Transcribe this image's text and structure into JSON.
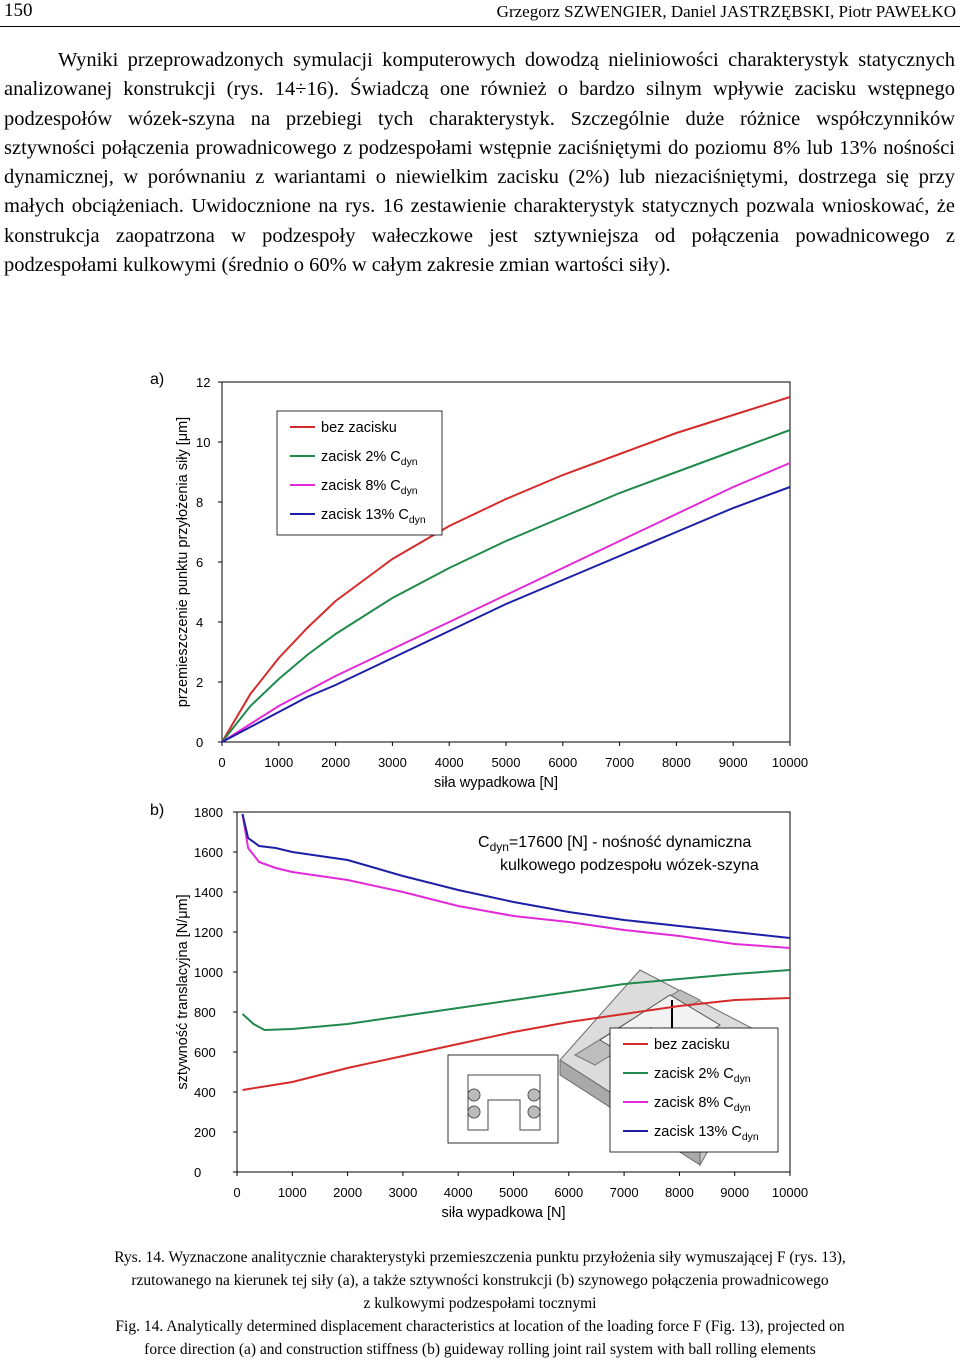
{
  "header": {
    "page_number": "150",
    "authors": "Grzegorz SZWENGIER, Daniel JASTRZĘBSKI, Piotr PAWEŁKO"
  },
  "paragraph": "Wyniki przeprowadzonych symulacji komputerowych dowodzą nieliniowości charakterystyk statycznych analizowanej konstrukcji (rys. 14÷16). Świadczą one również o bardzo silnym wpływie zacisku wstępnego podzespołów wózek-szyna na przebiegi tych charakterystyk. Szczególnie duże różnice współczynników sztywności połączenia prowadnicowego z podzespołami wstępnie zaciśniętymi do poziomu 8% lub 13% nośności dynamicznej, w porównaniu z wariantami o niewielkim zacisku (2%) lub niezaciśniętymi, dostrzega się przy małych obciążeniach. Uwidocznione na rys. 16 zestawienie charakterystyk statycznych pozwala wnioskować, że konstrukcja zaopatrzona w podzespoły wałeczkowe jest sztywniejsza od połączenia powadnicowego z podzespołami kulkowymi (średnio o 60% w całym zakresie zmian wartości siły).",
  "chart_data": [
    {
      "type": "line",
      "panel_label": "a)",
      "xlabel": "siła wypadkowa [N]",
      "ylabel": "przemieszczenie punktu przyłożenia siły [μm]",
      "xlim": [
        0,
        10000
      ],
      "ylim": [
        0,
        12
      ],
      "xticks": [
        "0",
        "1000",
        "2000",
        "3000",
        "4000",
        "5000",
        "6000",
        "7000",
        "8000",
        "9000",
        "10000"
      ],
      "yticks": [
        "0",
        "2",
        "4",
        "6",
        "8",
        "10",
        "12"
      ],
      "legend_position": "top-left",
      "series": [
        {
          "name": "bez zacisku",
          "color": "#d52b2b",
          "legend_label": "bez zacisku",
          "legend_sub": "",
          "x": [
            0,
            500,
            1000,
            1500,
            2000,
            3000,
            4000,
            5000,
            6000,
            7000,
            8000,
            9000,
            10000
          ],
          "y": [
            0,
            1.6,
            2.8,
            3.8,
            4.7,
            6.1,
            7.2,
            8.1,
            8.9,
            9.6,
            10.3,
            10.9,
            11.5
          ]
        },
        {
          "name": "zacisk 2% Cdyn",
          "color": "#1f8a4c",
          "legend_label": "zacisk 2% C",
          "legend_sub": "dyn",
          "x": [
            0,
            500,
            1000,
            1500,
            2000,
            3000,
            4000,
            5000,
            6000,
            7000,
            8000,
            9000,
            10000
          ],
          "y": [
            0,
            1.2,
            2.1,
            2.9,
            3.6,
            4.8,
            5.8,
            6.7,
            7.5,
            8.3,
            9.0,
            9.7,
            10.4
          ]
        },
        {
          "name": "zacisk 8% Cdyn",
          "color": "#e22ad9",
          "legend_label": "zacisk 8% C",
          "legend_sub": "dyn",
          "x": [
            0,
            500,
            1000,
            1500,
            2000,
            3000,
            4000,
            5000,
            6000,
            7000,
            8000,
            9000,
            10000
          ],
          "y": [
            0,
            0.6,
            1.2,
            1.7,
            2.2,
            3.1,
            4.0,
            4.9,
            5.8,
            6.7,
            7.6,
            8.5,
            9.3
          ]
        },
        {
          "name": "zacisk 13% Cdyn",
          "color": "#1c1fa6",
          "legend_label": "zacisk 13% C",
          "legend_sub": "dyn",
          "x": [
            0,
            500,
            1000,
            1500,
            2000,
            3000,
            4000,
            5000,
            6000,
            7000,
            8000,
            9000,
            10000
          ],
          "y": [
            0,
            0.5,
            1.0,
            1.5,
            1.9,
            2.8,
            3.7,
            4.6,
            5.4,
            6.2,
            7.0,
            7.8,
            8.5
          ]
        }
      ]
    },
    {
      "type": "line",
      "panel_label": "b)",
      "xlabel": "siła wypadkowa [N]",
      "ylabel": "sztywność translacyjna [N/μm]",
      "xlim": [
        0,
        10000
      ],
      "ylim": [
        0,
        1800
      ],
      "xticks": [
        "0",
        "1000",
        "2000",
        "3000",
        "4000",
        "5000",
        "6000",
        "7000",
        "8000",
        "9000",
        "10000"
      ],
      "yticks": [
        "0",
        "200",
        "400",
        "600",
        "800",
        "1000",
        "1200",
        "1400",
        "1600",
        "1800"
      ],
      "annotation_line1": "C",
      "annotation_sub": "dyn",
      "annotation_line1_rest": "=17600 [N] - nośność dynamiczna",
      "annotation_line2": "kulkowego podzespołu wózek-szyna",
      "legend_position": "bottom-right",
      "series": [
        {
          "name": "bez zacisku",
          "color": "#d52b2b",
          "legend_label": "bez zacisku",
          "legend_sub": "",
          "x": [
            100,
            1000,
            2000,
            3000,
            4000,
            5000,
            6000,
            7000,
            8000,
            9000,
            10000
          ],
          "y": [
            410,
            450,
            520,
            580,
            640,
            700,
            750,
            790,
            830,
            860,
            870
          ]
        },
        {
          "name": "zacisk 2% Cdyn",
          "color": "#1f8a4c",
          "legend_label": "zacisk 2% C",
          "legend_sub": "dyn",
          "x": [
            100,
            300,
            500,
            1000,
            2000,
            3000,
            4000,
            5000,
            6000,
            7000,
            8000,
            9000,
            10000
          ],
          "y": [
            790,
            740,
            710,
            715,
            740,
            780,
            820,
            860,
            900,
            940,
            965,
            990,
            1010
          ]
        },
        {
          "name": "zacisk 8% Cdyn",
          "color": "#e22ad9",
          "legend_label": "zacisk 8% C",
          "legend_sub": "dyn",
          "x": [
            100,
            200,
            400,
            700,
            1000,
            2000,
            3000,
            4000,
            5000,
            6000,
            7000,
            8000,
            9000,
            10000
          ],
          "y": [
            1790,
            1620,
            1550,
            1520,
            1500,
            1460,
            1400,
            1330,
            1280,
            1250,
            1210,
            1180,
            1140,
            1120
          ]
        },
        {
          "name": "zacisk 13% Cdyn",
          "color": "#1c1fa6",
          "legend_label": "zacisk 13% C",
          "legend_sub": "dyn",
          "x": [
            100,
            200,
            400,
            700,
            1000,
            2000,
            3000,
            4000,
            5000,
            6000,
            7000,
            8000,
            9000,
            10000
          ],
          "y": [
            1790,
            1670,
            1630,
            1620,
            1600,
            1560,
            1480,
            1410,
            1350,
            1300,
            1260,
            1230,
            1200,
            1170
          ]
        }
      ]
    }
  ],
  "captions": {
    "pl_line1": "Rys. 14. Wyznaczone analitycznie charakterystyki przemieszczenia punktu przyłożenia siły wymuszającej F (rys. 13),",
    "pl_line2": "rzutowanego na kierunek tej siły (a), a także sztywności konstrukcji (b) szynowego połączenia prowadnicowego",
    "pl_line3": "z kulkowymi podzespołami tocznymi",
    "en_line1": "Fig. 14. Analytically determined displacement characteristics at location of the loading force F (Fig. 13), projected on",
    "en_line2": "force direction (a) and construction stiffness (b) guideway rolling joint rail system with ball rolling elements"
  }
}
